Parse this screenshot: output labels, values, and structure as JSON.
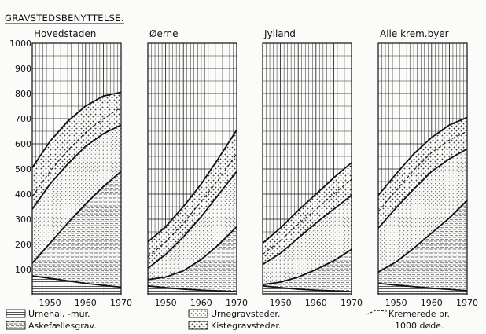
{
  "title": "GRAVSTEDSBENYTTELSE.",
  "legend": {
    "urnehal": "Urnehal, -mur.",
    "askefaelles": "Askefællesgrav.",
    "urnegrav": "Urnegravsteder.",
    "kistegrav": "Kistegravsteder.",
    "kremerede_line1": "Kremerede pr.",
    "kremerede_line2": "1000 døde."
  },
  "chart_data": [
    {
      "type": "area",
      "title": "Hovedstaden",
      "x": [
        1945,
        1950,
        1955,
        1960,
        1965,
        1970
      ],
      "ylim": [
        0,
        1000
      ],
      "xlim": [
        1945,
        1970
      ],
      "yticks": [
        100,
        200,
        300,
        400,
        500,
        600,
        700,
        800,
        900,
        1000
      ],
      "xticks": [
        1950,
        1960,
        1970
      ],
      "series": [
        {
          "name": "Urnehal, -mur.",
          "values": [
            75,
            65,
            55,
            45,
            37,
            30
          ]
        },
        {
          "name": "Askefællesgrav.",
          "values": [
            125,
            205,
            285,
            360,
            430,
            490
          ]
        },
        {
          "name": "Urnegravsteder.",
          "values": [
            340,
            440,
            520,
            590,
            640,
            675
          ]
        },
        {
          "name": "Kistegravsteder.",
          "values": [
            505,
            610,
            690,
            750,
            790,
            805
          ]
        }
      ],
      "kremerede": [
        390,
        490,
        575,
        645,
        700,
        745
      ]
    },
    {
      "type": "area",
      "title": "Øerne",
      "x": [
        1945,
        1950,
        1955,
        1960,
        1965,
        1970
      ],
      "ylim": [
        0,
        1000
      ],
      "xlim": [
        1945,
        1970
      ],
      "yticks": [
        100,
        200,
        300,
        400,
        500,
        600,
        700,
        800,
        900,
        1000
      ],
      "xticks": [
        1950,
        1960,
        1970
      ],
      "series": [
        {
          "name": "Urnehal, -mur.",
          "values": [
            35,
            28,
            22,
            18,
            15,
            12
          ]
        },
        {
          "name": "Askefællesgrav.",
          "values": [
            60,
            70,
            95,
            140,
            200,
            270
          ]
        },
        {
          "name": "Urnegravsteder.",
          "values": [
            105,
            160,
            230,
            310,
            400,
            490
          ]
        },
        {
          "name": "Kistegravsteder.",
          "values": [
            210,
            270,
            350,
            440,
            545,
            655
          ]
        }
      ],
      "kremerede": [
        150,
        210,
        285,
        370,
        460,
        560
      ]
    },
    {
      "type": "area",
      "title": "Jylland",
      "x": [
        1945,
        1950,
        1955,
        1960,
        1965,
        1970
      ],
      "ylim": [
        0,
        1000
      ],
      "xlim": [
        1945,
        1970
      ],
      "yticks": [
        100,
        200,
        300,
        400,
        500,
        600,
        700,
        800,
        900,
        1000
      ],
      "xticks": [
        1950,
        1960,
        1970
      ],
      "series": [
        {
          "name": "Urnehal, -mur.",
          "values": [
            35,
            28,
            22,
            18,
            15,
            12
          ]
        },
        {
          "name": "Askefællesgrav.",
          "values": [
            40,
            50,
            70,
            100,
            135,
            180
          ]
        },
        {
          "name": "Urnegravsteder.",
          "values": [
            120,
            165,
            225,
            285,
            340,
            395
          ]
        },
        {
          "name": "Kistegravsteder.",
          "values": [
            205,
            265,
            335,
            400,
            465,
            525
          ]
        }
      ],
      "kremerede": [
        160,
        215,
        280,
        340,
        400,
        460
      ]
    },
    {
      "type": "area",
      "title": "Alle krem.byer",
      "x": [
        1945,
        1950,
        1955,
        1960,
        1965,
        1970
      ],
      "ylim": [
        0,
        1000
      ],
      "xlim": [
        1945,
        1970
      ],
      "yticks": [
        100,
        200,
        300,
        400,
        500,
        600,
        700,
        800,
        900,
        1000
      ],
      "xticks": [
        1950,
        1960,
        1970
      ],
      "series": [
        {
          "name": "Urnehal, -mur.",
          "values": [
            45,
            38,
            32,
            26,
            21,
            16
          ]
        },
        {
          "name": "Askefællesgrav.",
          "values": [
            90,
            130,
            185,
            245,
            305,
            375
          ]
        },
        {
          "name": "Urnegravsteder.",
          "values": [
            265,
            345,
            420,
            490,
            540,
            580
          ]
        },
        {
          "name": "Kistegravsteder.",
          "values": [
            395,
            480,
            560,
            625,
            675,
            705
          ]
        }
      ],
      "kremerede": [
        330,
        415,
        495,
        565,
        615,
        650
      ]
    }
  ]
}
